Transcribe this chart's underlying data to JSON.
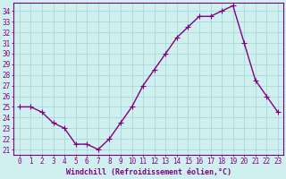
{
  "x": [
    0,
    1,
    2,
    3,
    4,
    5,
    6,
    7,
    8,
    9,
    10,
    11,
    12,
    13,
    14,
    15,
    16,
    17,
    18,
    19,
    20,
    21,
    22,
    23
  ],
  "y": [
    25.0,
    25.0,
    24.5,
    23.5,
    23.0,
    21.5,
    21.5,
    21.0,
    22.0,
    23.5,
    25.0,
    27.0,
    28.5,
    30.0,
    31.5,
    32.5,
    33.5,
    33.5,
    34.0,
    34.5,
    31.0,
    27.5,
    26.0,
    24.5
  ],
  "line_color": "#800080",
  "marker": "D",
  "marker_size": 2.2,
  "line_width": 1.0,
  "bg_color": "#d0f0f0",
  "grid_color": "#a8d8d8",
  "xlabel": "Windchill (Refroidissement éolien,°C)",
  "xlabel_fontsize": 6.0,
  "ylabel_ticks": [
    21,
    22,
    23,
    24,
    25,
    26,
    27,
    28,
    29,
    30,
    31,
    32,
    33,
    34
  ],
  "xlim": [
    -0.5,
    23.5
  ],
  "ylim": [
    20.5,
    34.8
  ],
  "tick_fontsize": 5.5,
  "tick_color": "#800080",
  "label_color": "#800080",
  "spine_color": "#800080"
}
